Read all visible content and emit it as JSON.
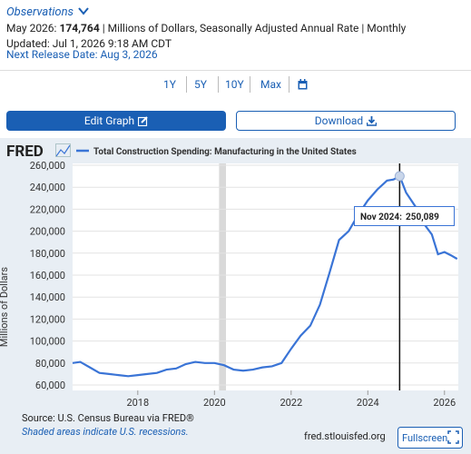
{
  "header": {
    "observations": "Observations",
    "latest_date": "May 2026:",
    "latest_value": "174,764",
    "units": "| Millions of Dollars, Seasonally Adjusted Annual Rate | Monthly",
    "updated": "Updated: Jul 1, 2026 9:18 AM CDT",
    "next_release": "Next Release Date: Aug 3, 2026"
  },
  "ranges": [
    "1Y",
    "5Y",
    "10Y",
    "Max"
  ],
  "buttons": {
    "edit": "Edit Graph",
    "download": "Download"
  },
  "brand": "FRED",
  "chart_data": {
    "type": "line",
    "ylabel": "Millions of Dollars",
    "x": [
      2016.3,
      2016.5,
      2016.75,
      2017.0,
      2017.25,
      2017.5,
      2017.75,
      2018.0,
      2018.25,
      2018.5,
      2018.75,
      2019.0,
      2019.25,
      2019.5,
      2019.75,
      2020.0,
      2020.25,
      2020.5,
      2020.75,
      2021.0,
      2021.25,
      2021.5,
      2021.75,
      2022.0,
      2022.25,
      2022.5,
      2022.75,
      2023.0,
      2023.25,
      2023.5,
      2023.75,
      2024.0,
      2024.25,
      2024.5,
      2024.67,
      2024.83,
      2025.0,
      2025.25,
      2025.5,
      2025.67,
      2025.83,
      2026.0,
      2026.17,
      2026.33
    ],
    "series": [
      {
        "name": "Total Construction Spending: Manufacturing in the United States",
        "color": "#3a74d6",
        "values": [
          80000,
          81000,
          76000,
          71000,
          70000,
          69000,
          68000,
          69000,
          70000,
          71000,
          74000,
          75000,
          79000,
          81000,
          80000,
          80000,
          78000,
          74000,
          73000,
          74000,
          76000,
          77000,
          80000,
          93000,
          105000,
          114000,
          133000,
          162000,
          192000,
          200000,
          215000,
          228000,
          238000,
          246000,
          247000,
          250089,
          235000,
          222000,
          205000,
          197000,
          179000,
          181000,
          178000,
          174764
        ]
      }
    ],
    "xlim": [
      2016.3,
      2026.36
    ],
    "ylim": [
      60000,
      260000
    ],
    "xticks": [
      2018,
      2020,
      2022,
      2024,
      2026
    ],
    "yticks": [
      {
        "value": 60000,
        "label": "60,000"
      },
      {
        "value": 80000,
        "label": "80,000"
      },
      {
        "value": 100000,
        "label": "100,000"
      },
      {
        "value": 120000,
        "label": "120,000"
      },
      {
        "value": 140000,
        "label": "140,000"
      },
      {
        "value": 160000,
        "label": "160,000"
      },
      {
        "value": 180000,
        "label": "180,000"
      },
      {
        "value": 200000,
        "label": "200,000"
      },
      {
        "value": 220000,
        "label": "220,000"
      },
      {
        "value": 240000,
        "label": "240,000"
      },
      {
        "value": 260000,
        "label": "260,000"
      }
    ],
    "grid": true,
    "recessions": [
      [
        2020.12,
        2020.3
      ]
    ],
    "tooltip": {
      "label": "Nov 2024:",
      "value": "250,089"
    },
    "source": "Source: U.S. Census Bureau via FRED®",
    "note": "Shaded areas indicate U.S. recessions.",
    "site": "fred.stlouisfed.org",
    "fullscreen": "Fullscreen"
  }
}
